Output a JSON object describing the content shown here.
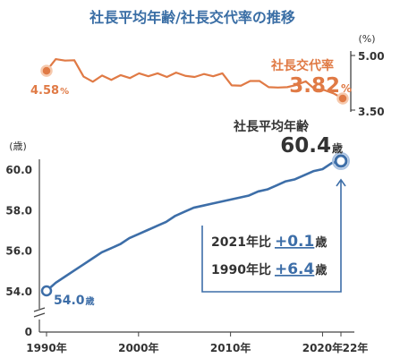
{
  "title": "社長平均年齢/社長交代率の推移",
  "colors": {
    "title": "#3a6ea5",
    "age_line": "#3d6ea8",
    "turnover_line": "#e07a45",
    "dark_text": "#333333",
    "axis": "#555555"
  },
  "chart_data": [
    {
      "type": "line",
      "series": [
        {
          "name": "社長交代率",
          "unit": "%"
        }
      ],
      "x": [
        1990,
        1991,
        1992,
        1993,
        1994,
        1995,
        1996,
        1997,
        1998,
        1999,
        2000,
        2001,
        2002,
        2003,
        2004,
        2005,
        2006,
        2007,
        2008,
        2009,
        2010,
        2011,
        2012,
        2013,
        2014,
        2015,
        2016,
        2017,
        2018,
        2019,
        2020,
        2021,
        2022
      ],
      "values": [
        4.58,
        4.9,
        4.86,
        4.87,
        4.42,
        4.28,
        4.45,
        4.33,
        4.46,
        4.38,
        4.51,
        4.43,
        4.51,
        4.41,
        4.53,
        4.44,
        4.41,
        4.49,
        4.43,
        4.51,
        4.18,
        4.17,
        4.3,
        4.3,
        4.13,
        4.12,
        4.13,
        4.19,
        4.29,
        4.07,
        4.05,
        3.96,
        3.82
      ],
      "y_unit_label": "(%)",
      "y_ticks": [
        "5.00",
        "3.50"
      ],
      "ylim": [
        3.5,
        5.0
      ],
      "start_label": {
        "value": "4.58",
        "unit": "%"
      },
      "end_label": {
        "name": "社長交代率",
        "value": "3.82",
        "unit": "%"
      }
    },
    {
      "type": "line",
      "series": [
        {
          "name": "社長平均年齢",
          "unit": "歳"
        }
      ],
      "x": [
        1990,
        1991,
        1992,
        1993,
        1994,
        1995,
        1996,
        1997,
        1998,
        1999,
        2000,
        2001,
        2002,
        2003,
        2004,
        2005,
        2006,
        2007,
        2008,
        2009,
        2010,
        2011,
        2012,
        2013,
        2014,
        2015,
        2016,
        2017,
        2018,
        2019,
        2020,
        2021,
        2022
      ],
      "values": [
        54.0,
        54.4,
        54.7,
        55.0,
        55.3,
        55.6,
        55.9,
        56.1,
        56.3,
        56.6,
        56.8,
        57.0,
        57.2,
        57.4,
        57.7,
        57.9,
        58.1,
        58.2,
        58.3,
        58.4,
        58.5,
        58.6,
        58.7,
        58.9,
        59.0,
        59.2,
        59.4,
        59.5,
        59.7,
        59.9,
        60.0,
        60.3,
        60.4
      ],
      "y_unit_label": "(歳)",
      "y_ticks": [
        "60.0",
        "58.0",
        "56.0",
        "54.0",
        "0"
      ],
      "y_axis_break": true,
      "ylim": [
        54.0,
        60.0
      ],
      "x_ticks": [
        "1990年",
        "2000年",
        "2010年",
        "2020年",
        "22年"
      ],
      "start_label": {
        "value": "54.0",
        "unit": "歳"
      },
      "end_label": {
        "name": "社長平均年齢",
        "value": "60.4",
        "unit": "歳"
      },
      "annotations": [
        {
          "prefix": "2021年比",
          "value": "+0.1",
          "unit": "歳"
        },
        {
          "prefix": "1990年比",
          "value": "+6.4",
          "unit": "歳"
        }
      ]
    }
  ]
}
